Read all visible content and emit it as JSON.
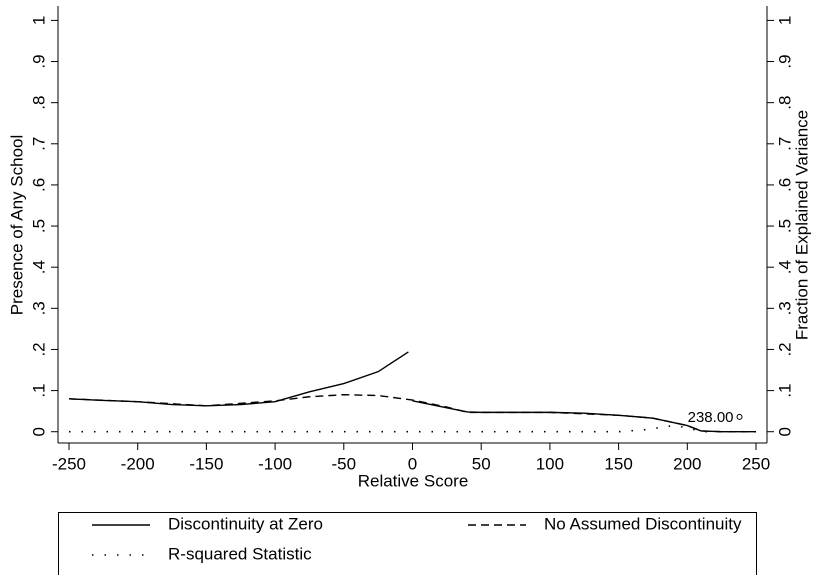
{
  "chart_data": {
    "type": "line",
    "x_label": "Relative Score",
    "y_label": "Presence of Any School",
    "y2_label": "Fraction of Explained Variance",
    "xlim": [
      -258,
      258
    ],
    "xticks": [
      -250,
      -200,
      -150,
      -100,
      -50,
      0,
      50,
      100,
      150,
      200,
      250
    ],
    "ylim": [
      -0.025,
      1.035
    ],
    "yticks": [
      0,
      {
        "value": 0.1,
        "label": ".1"
      },
      {
        "value": 0.2,
        "label": ".2"
      },
      {
        "value": 0.3,
        "label": ".3"
      },
      {
        "value": 0.4,
        "label": ".4"
      },
      {
        "value": 0.5,
        "label": ".5"
      },
      {
        "value": 0.6,
        "label": ".6"
      },
      {
        "value": 0.7,
        "label": ".7"
      },
      {
        "value": 0.8,
        "label": ".8"
      },
      {
        "value": 0.9,
        "label": ".9"
      },
      1
    ],
    "y2lim": [
      -0.025,
      1.035
    ],
    "y2ticks": [
      0,
      {
        "value": 0.1,
        "label": ".1"
      },
      {
        "value": 0.2,
        "label": ".2"
      },
      {
        "value": 0.3,
        "label": ".3"
      },
      {
        "value": 0.4,
        "label": ".4"
      },
      {
        "value": 0.5,
        "label": ".5"
      },
      {
        "value": 0.6,
        "label": ".6"
      },
      {
        "value": 0.7,
        "label": ".7"
      },
      {
        "value": 0.8,
        "label": ".8"
      },
      {
        "value": 0.9,
        "label": ".9"
      },
      1
    ],
    "series": [
      {
        "name": "Discontinuity at Zero",
        "color": "#000000",
        "style": "solid",
        "x": [
          -250,
          -225,
          -200,
          -175,
          -150,
          -125,
          -100,
          -75,
          -50,
          -25,
          -3,
          0,
          0,
          25,
          40,
          50,
          100,
          125,
          150,
          175,
          200,
          210,
          225,
          250
        ],
        "values": [
          0.08,
          0.076,
          0.073,
          0.066,
          0.063,
          0.066,
          0.073,
          0.097,
          0.117,
          0.146,
          0.194,
          null,
          0.075,
          0.058,
          0.048,
          0.047,
          0.047,
          0.045,
          0.04,
          0.033,
          0.015,
          0.002,
          0,
          0
        ]
      },
      {
        "name": "No Assumed Discontinuity",
        "color": "#000000",
        "style": "dashed",
        "x": [
          -250,
          -200,
          -150,
          -100,
          -75,
          -50,
          -25,
          0,
          25,
          40,
          50,
          100,
          150,
          175,
          200,
          210,
          225,
          250
        ],
        "values": [
          0.08,
          0.073,
          0.063,
          0.075,
          0.085,
          0.09,
          0.088,
          0.077,
          0.06,
          0.047,
          0.047,
          0.047,
          0.04,
          0.033,
          0.015,
          0.002,
          0,
          0
        ]
      },
      {
        "name": "R-squared Statistic",
        "color": "#000000",
        "style": "dotted",
        "axis": "y2",
        "x": [
          -250,
          -230,
          -210,
          -190,
          -170,
          -150,
          -130,
          -110,
          -90,
          -70,
          -50,
          -30,
          -10,
          10,
          30,
          50,
          70,
          90,
          110,
          130,
          150,
          170,
          180,
          190,
          200,
          210,
          230,
          250
        ],
        "values": [
          0,
          0,
          0,
          0,
          0,
          0,
          0,
          0,
          0,
          0,
          0,
          0,
          0,
          0,
          0,
          0,
          0,
          0,
          0,
          0,
          0,
          0.005,
          0.01,
          0.015,
          0.01,
          0,
          0,
          0
        ]
      }
    ],
    "annotations": [
      {
        "x": 238,
        "y": 0.036,
        "label": "238.00"
      }
    ]
  }
}
